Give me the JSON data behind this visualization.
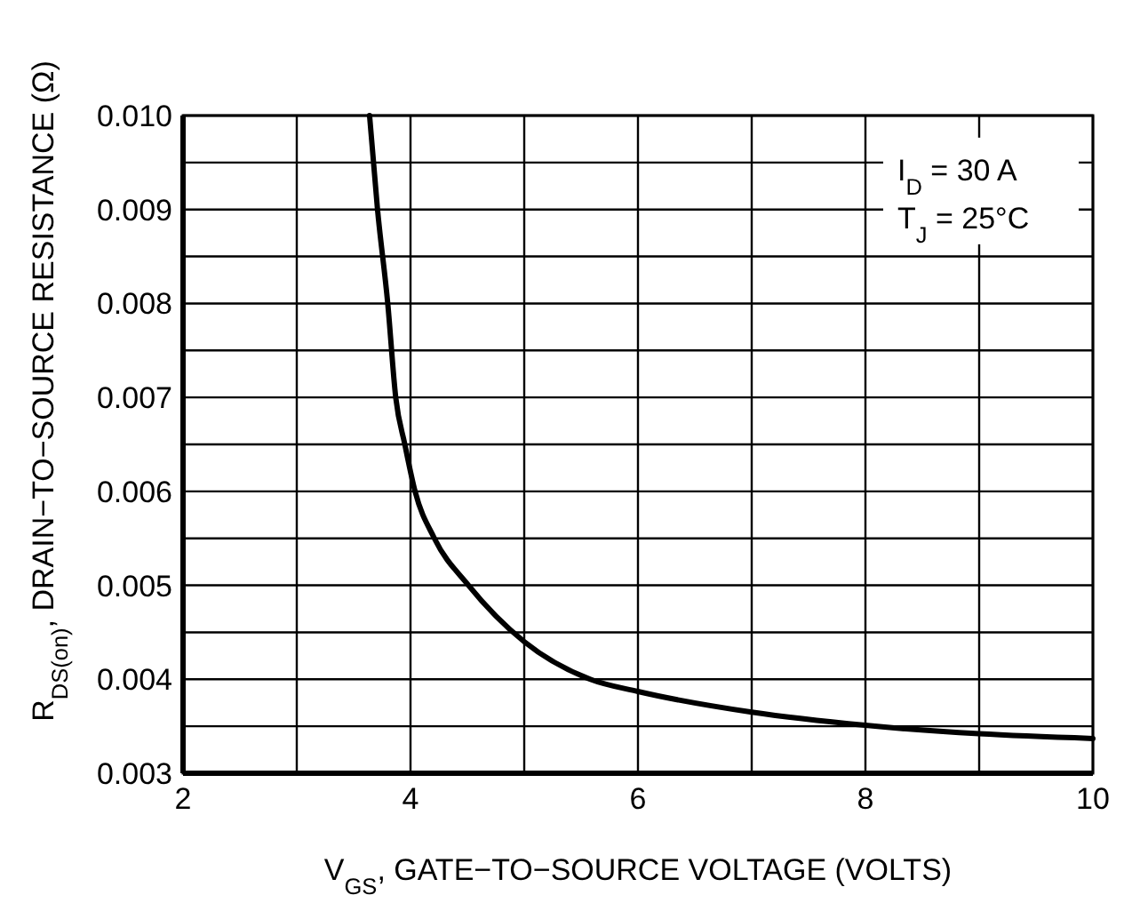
{
  "chart_data": {
    "type": "line",
    "xlabel": "V$_{GS}$, GATE−TO−SOURCE VOLTAGE (VOLTS)",
    "ylabel": "R$_{DS(on)}$, DRAIN−TO−SOURCE RESISTANCE (Ω)",
    "annotations": [
      "I$_{D}$ = 30 A",
      "T$_{J}$ = 25°C"
    ],
    "x": [
      3.64,
      3.71,
      3.8,
      3.87,
      3.95,
      4.04,
      4.21,
      4.51,
      5.0,
      5.58,
      6.0,
      7.0,
      8.0,
      9.0,
      10.0
    ],
    "series": [
      {
        "color": "#000000",
        "values": [
          0.01,
          0.009,
          0.008,
          0.007,
          0.0065,
          0.006,
          0.0055,
          0.005,
          0.0044,
          0.004,
          0.00387,
          0.00365,
          0.00351,
          0.00342,
          0.00337
        ]
      }
    ],
    "xlim": [
      2,
      10
    ],
    "ylim": [
      0.003,
      0.01
    ],
    "xticks": [
      2,
      {
        "value": 3,
        "label": null
      },
      4,
      {
        "value": 5,
        "label": null
      },
      6,
      {
        "value": 7,
        "label": null
      },
      8,
      {
        "value": 9,
        "label": null
      },
      10
    ],
    "yticks": [
      {
        "value": 0.003,
        "label": "0.003"
      },
      {
        "value": 0.0035,
        "label": null
      },
      {
        "value": 0.004,
        "label": "0.004"
      },
      {
        "value": 0.0045,
        "label": null
      },
      {
        "value": 0.005,
        "label": "0.005"
      },
      {
        "value": 0.0055,
        "label": null
      },
      {
        "value": 0.006,
        "label": "0.006"
      },
      {
        "value": 0.0065,
        "label": null
      },
      {
        "value": 0.007,
        "label": "0.007"
      },
      {
        "value": 0.0075,
        "label": null
      },
      {
        "value": 0.008,
        "label": "0.008"
      },
      {
        "value": 0.0085,
        "label": null
      },
      {
        "value": 0.009,
        "label": "0.009"
      },
      {
        "value": 0.0095,
        "label": null
      },
      {
        "value": 0.01,
        "label": "0.010"
      }
    ],
    "grid": true,
    "marker": "none",
    "line_style": "solid"
  }
}
